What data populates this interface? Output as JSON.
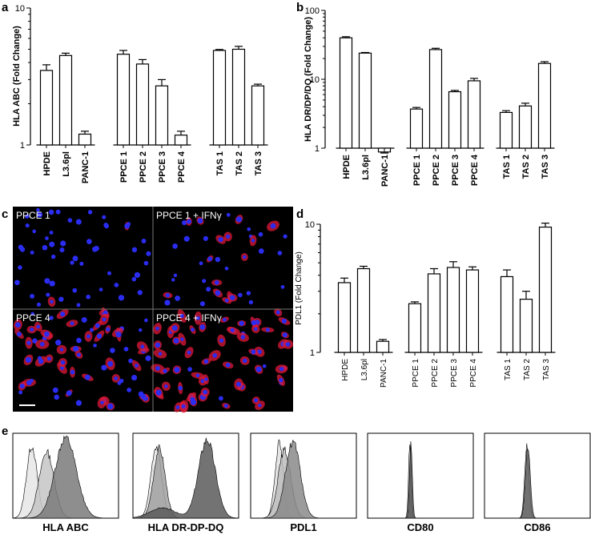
{
  "panel_letters": {
    "a": "a",
    "b": "b",
    "c": "c",
    "d": "d",
    "e": "e"
  },
  "chart_data": [
    {
      "panel": "a",
      "type": "bar",
      "scale": "log",
      "ylabel": "HLA  ABC (Fold Change)",
      "ylim": [
        1,
        10
      ],
      "ytick_labels": [
        "1",
        "10"
      ],
      "categories": [
        "HPDE",
        "L3.6pl",
        "PANC-1",
        "PPCE 1",
        "PPCE 2",
        "PPCE 3",
        "PPCE 4",
        "TAS 1",
        "TAS 2",
        "TAS 3"
      ],
      "groups": [
        3,
        4,
        3
      ],
      "values": [
        3.5,
        4.5,
        1.2,
        4.6,
        3.9,
        2.7,
        1.18,
        4.9,
        5.0,
        2.7
      ],
      "errors": [
        0.35,
        0.18,
        0.06,
        0.3,
        0.3,
        0.3,
        0.08,
        0.08,
        0.25,
        0.08
      ]
    },
    {
      "panel": "b",
      "type": "bar",
      "scale": "log",
      "ylabel": "HLA DR/DP/DQ (Fold  Change)",
      "ylim": [
        1,
        100
      ],
      "ytick_labels": [
        "1",
        "10",
        "100"
      ],
      "categories": [
        "HPDE",
        "L3.6pl",
        "PANC-1",
        "PPCE 1",
        "PPCE 2",
        "PPCE 3",
        "PPCE 4",
        "TAS 1",
        "TAS 2",
        "TAS 3"
      ],
      "groups": [
        3,
        4,
        3
      ],
      "values": [
        40,
        24,
        0.88,
        3.7,
        27,
        6.6,
        9.5,
        3.3,
        4.1,
        17
      ],
      "errors": [
        1.5,
        0.5,
        0.03,
        0.2,
        1.2,
        0.3,
        0.8,
        0.2,
        0.4,
        1.0
      ]
    },
    {
      "panel": "d",
      "type": "bar",
      "scale": "log",
      "ylabel": "PDL1 (Fold Change)",
      "ylim": [
        1,
        10
      ],
      "ytick_labels": [
        "1",
        "10"
      ],
      "categories": [
        "HPDE",
        "L3.6pl",
        "PANC-1",
        "PPCE 1",
        "PPCE 2",
        "PPCE 3",
        "PPCE 4",
        "TAS 1",
        "TAS 2",
        "TAS 3"
      ],
      "groups": [
        3,
        4,
        3
      ],
      "values": [
        3.5,
        4.5,
        1.22,
        2.4,
        4.1,
        4.6,
        4.4,
        3.9,
        2.6,
        9.5
      ],
      "errors": [
        0.3,
        0.2,
        0.04,
        0.08,
        0.4,
        0.5,
        0.25,
        0.5,
        0.4,
        0.7
      ]
    }
  ],
  "microscopy": {
    "tiles": [
      {
        "label": "PPCE 1",
        "density": 55,
        "red": 0.05
      },
      {
        "label": "PPCE 1 + IFNγ",
        "density": 40,
        "red": 0.35
      },
      {
        "label": "PPCE 4",
        "density": 70,
        "red": 0.6
      },
      {
        "label": "PPCE 4 + IFNγ",
        "density": 65,
        "red": 0.95
      }
    ],
    "colors": {
      "background": "#000000",
      "nucleus": "#2a2cf0",
      "membrane": "#e01838"
    }
  },
  "histograms": [
    {
      "label": "HLA ABC",
      "curves": [
        {
          "fill": "#e6e6e6",
          "peaks": [
            [
              0.18,
              0.85,
              0.05
            ]
          ]
        },
        {
          "fill": "#c6c6c6",
          "peaks": [
            [
              0.32,
              0.78,
              0.07
            ]
          ]
        },
        {
          "fill": "#7a7a7a",
          "peaks": [
            [
              0.5,
              0.95,
              0.1
            ]
          ]
        }
      ]
    },
    {
      "label": "HLA DR-DP-DQ",
      "curves": [
        {
          "fill": "#e4e4e4",
          "peaks": [
            [
              0.22,
              0.85,
              0.05
            ]
          ]
        },
        {
          "fill": "#a0a0a0",
          "peaks": [
            [
              0.25,
              0.82,
              0.055
            ]
          ]
        },
        {
          "fill": "#5a5a5a",
          "peaks": [
            [
              0.28,
              0.12,
              0.12
            ],
            [
              0.7,
              0.92,
              0.08
            ]
          ]
        }
      ]
    },
    {
      "label": "PDL1",
      "curves": [
        {
          "fill": "#e0e0e0",
          "peaks": [
            [
              0.27,
              0.88,
              0.04
            ]
          ]
        },
        {
          "fill": "#bdbdbd",
          "peaks": [
            [
              0.32,
              0.8,
              0.06
            ]
          ]
        },
        {
          "fill": "#8a8a8a",
          "peaks": [
            [
              0.4,
              0.9,
              0.07
            ]
          ]
        }
      ]
    },
    {
      "label": "CD80",
      "curves": [
        {
          "fill": "#bdbdbd",
          "peaks": [
            [
              0.4,
              0.9,
              0.012
            ]
          ]
        },
        {
          "fill": "#555555",
          "peaks": [
            [
              0.41,
              0.88,
              0.013
            ]
          ]
        }
      ]
    },
    {
      "label": "CD86",
      "curves": [
        {
          "fill": "#cfcfcf",
          "peaks": [
            [
              0.4,
              0.86,
              0.02
            ]
          ]
        },
        {
          "fill": "#606060",
          "peaks": [
            [
              0.41,
              0.86,
              0.022
            ]
          ]
        }
      ]
    }
  ]
}
